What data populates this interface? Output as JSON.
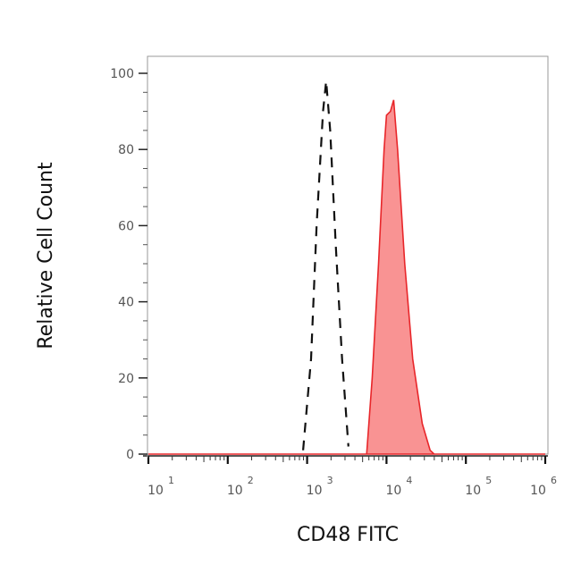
{
  "chart_data": {
    "type": "area",
    "title": "",
    "xlabel": "CD48 FITC",
    "ylabel": "Relative Cell Count",
    "xscale": "log",
    "xlim": [
      10,
      1000000
    ],
    "ylim": [
      0,
      100
    ],
    "xticks": [
      {
        "base": "10",
        "exp": "1",
        "value": 10
      },
      {
        "base": "10",
        "exp": "2",
        "value": 100
      },
      {
        "base": "10",
        "exp": "3",
        "value": 1000
      },
      {
        "base": "10",
        "exp": "4",
        "value": 10000
      },
      {
        "base": "10",
        "exp": "5",
        "value": 100000
      },
      {
        "base": "10",
        "exp": "6",
        "value": 1000000
      }
    ],
    "yticks": [
      "0",
      "20",
      "40",
      "60",
      "80",
      "100"
    ],
    "grid": false,
    "series": [
      {
        "style": "dashed-outline",
        "color": "#111111",
        "x": [
          891,
          1122,
          1318,
          1585,
          1738,
          1950,
          2291,
          2754,
          3311
        ],
        "y": [
          1,
          25,
          60,
          90,
          98,
          85,
          55,
          25,
          2
        ]
      },
      {
        "style": "filled",
        "color": "#e8262a",
        "fill": "#f99393",
        "x": [
          10,
          5623,
          6607,
          7943,
          9333,
          10000,
          11220,
          12300,
          13800,
          16980,
          21380,
          28180,
          35480,
          39810,
          1000000
        ],
        "y": [
          0,
          0,
          20,
          50,
          80,
          89,
          90,
          93,
          80,
          50,
          25,
          8,
          1,
          0,
          0
        ]
      }
    ]
  }
}
